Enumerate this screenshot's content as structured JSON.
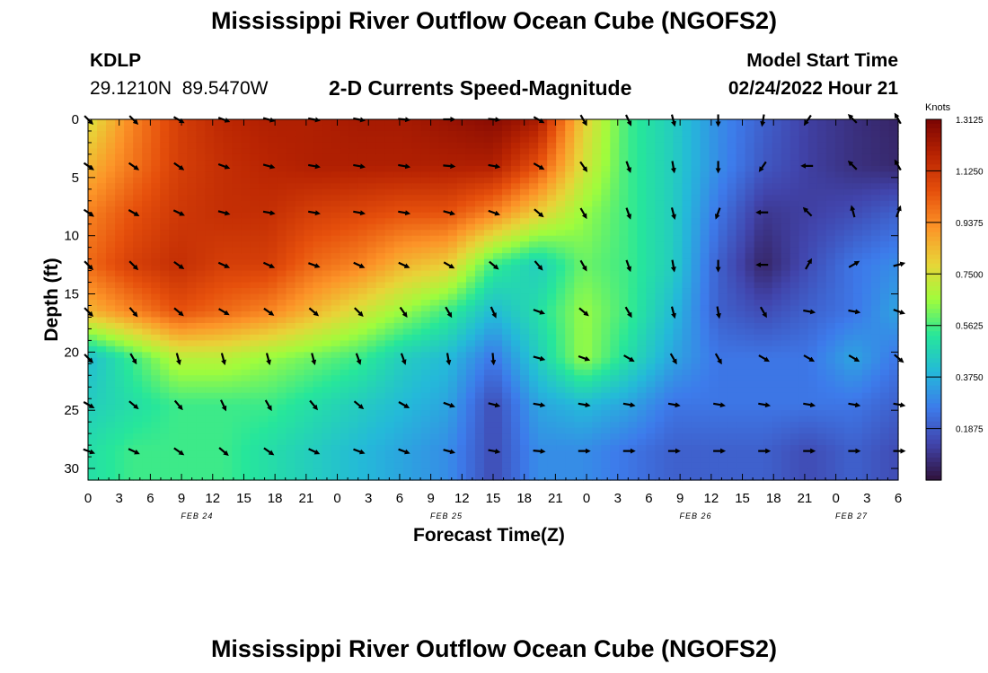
{
  "header": {
    "title": "Mississippi River Outflow Ocean Cube (NGOFS2)",
    "station": "KDLP",
    "coords": "29.1210N  89.5470W",
    "subtitle": "2-D Currents Speed-Magnitude",
    "model_start_label": "Model Start Time",
    "model_start_value": "02/24/2022 Hour 21"
  },
  "chart_data": {
    "type": "heatmap",
    "title": "2-D Currents Speed-Magnitude",
    "xlabel": "Forecast Time(Z)",
    "ylabel": "Depth (ft)",
    "x_range_hours": [
      0,
      78
    ],
    "ylim": [
      0,
      31
    ],
    "x_tick_labels": [
      "0",
      "3",
      "6",
      "9",
      "12",
      "15",
      "18",
      "21",
      "0",
      "3",
      "6",
      "9",
      "12",
      "15",
      "18",
      "21",
      "0",
      "3",
      "6",
      "9",
      "12",
      "15",
      "18",
      "21",
      "0",
      "3",
      "6"
    ],
    "y_ticks": [
      0,
      5,
      10,
      15,
      20,
      25,
      30
    ],
    "date_labels": [
      {
        "label": "FEB 24",
        "hour": 10.5
      },
      {
        "label": "FEB 25",
        "hour": 34.5
      },
      {
        "label": "FEB 26",
        "hour": 58.5
      },
      {
        "label": "FEB 27",
        "hour": 73.5
      }
    ],
    "depth_levels": [
      0,
      4,
      8,
      12.5,
      16.5,
      20.5,
      24.5,
      28.5
    ],
    "arrow_hours": [
      0,
      4.33,
      8.67,
      13,
      17.33,
      21.67,
      26,
      30.33,
      34.67,
      39,
      43.33,
      47.67,
      52,
      56.33,
      60.67,
      65,
      69.33,
      73.67,
      78
    ],
    "speed_knots": [
      [
        0.75,
        0.95,
        1.1,
        1.17,
        1.2,
        1.2,
        1.22,
        1.22,
        1.25,
        1.28,
        1.22,
        0.8,
        0.55,
        0.45,
        0.3,
        0.2,
        0.12,
        0.08,
        0.05
      ],
      [
        0.85,
        0.98,
        1.1,
        1.15,
        1.18,
        1.2,
        1.2,
        1.2,
        1.2,
        1.2,
        1.05,
        0.75,
        0.55,
        0.45,
        0.3,
        0.18,
        0.12,
        0.08,
        0.06
      ],
      [
        0.95,
        1.05,
        1.12,
        1.15,
        1.15,
        1.1,
        1.08,
        1.05,
        1.05,
        0.95,
        0.8,
        0.65,
        0.55,
        0.45,
        0.25,
        0.1,
        0.12,
        0.15,
        0.2
      ],
      [
        1.0,
        1.1,
        1.15,
        1.1,
        1.1,
        1.0,
        0.95,
        0.85,
        0.8,
        0.55,
        0.45,
        0.6,
        0.55,
        0.45,
        0.2,
        0.05,
        0.15,
        0.25,
        0.3
      ],
      [
        0.85,
        0.95,
        1.05,
        1.0,
        0.95,
        0.85,
        0.75,
        0.65,
        0.55,
        0.4,
        0.5,
        0.65,
        0.55,
        0.4,
        0.2,
        0.15,
        0.2,
        0.25,
        0.35
      ],
      [
        0.4,
        0.55,
        0.7,
        0.7,
        0.65,
        0.6,
        0.55,
        0.45,
        0.4,
        0.25,
        0.45,
        0.65,
        0.5,
        0.35,
        0.25,
        0.25,
        0.25,
        0.35,
        0.25
      ],
      [
        0.45,
        0.5,
        0.55,
        0.55,
        0.55,
        0.5,
        0.45,
        0.4,
        0.35,
        0.15,
        0.35,
        0.4,
        0.35,
        0.25,
        0.25,
        0.25,
        0.25,
        0.25,
        0.2
      ],
      [
        0.5,
        0.55,
        0.55,
        0.55,
        0.5,
        0.45,
        0.4,
        0.35,
        0.3,
        0.15,
        0.3,
        0.3,
        0.25,
        0.2,
        0.2,
        0.2,
        0.15,
        0.2,
        0.15
      ]
    ],
    "direction_deg": [
      [
        135,
        135,
        120,
        110,
        105,
        100,
        100,
        95,
        90,
        95,
        120,
        150,
        155,
        165,
        180,
        190,
        215,
        315,
        330
      ],
      [
        125,
        125,
        125,
        110,
        105,
        100,
        100,
        100,
        95,
        100,
        120,
        145,
        160,
        170,
        180,
        215,
        270,
        315,
        330
      ],
      [
        125,
        120,
        115,
        105,
        100,
        100,
        100,
        100,
        105,
        110,
        130,
        150,
        160,
        165,
        200,
        270,
        315,
        345,
        20
      ],
      [
        135,
        135,
        125,
        115,
        115,
        110,
        115,
        115,
        120,
        130,
        140,
        150,
        160,
        170,
        180,
        270,
        30,
        60,
        75
      ],
      [
        135,
        140,
        130,
        120,
        125,
        130,
        135,
        145,
        150,
        155,
        110,
        130,
        150,
        165,
        170,
        150,
        100,
        100,
        110
      ],
      [
        135,
        150,
        165,
        165,
        165,
        165,
        160,
        160,
        170,
        175,
        105,
        110,
        120,
        150,
        150,
        120,
        120,
        120,
        130
      ],
      [
        120,
        130,
        140,
        155,
        150,
        140,
        130,
        120,
        110,
        105,
        100,
        100,
        100,
        100,
        100,
        100,
        100,
        100,
        100
      ],
      [
        110,
        115,
        125,
        130,
        125,
        115,
        110,
        110,
        105,
        100,
        95,
        90,
        90,
        90,
        90,
        90,
        90,
        90,
        90
      ]
    ],
    "colorbar": {
      "unit": "Knots",
      "range": [
        0,
        1.3125
      ],
      "tick_labels": [
        "1.3125",
        "1.1250",
        "0.9375",
        "0.7500",
        "0.5625",
        "0.3750",
        "0.1875"
      ]
    }
  },
  "footer": {
    "title": "Mississippi River Outflow Ocean Cube (NGOFS2)"
  }
}
